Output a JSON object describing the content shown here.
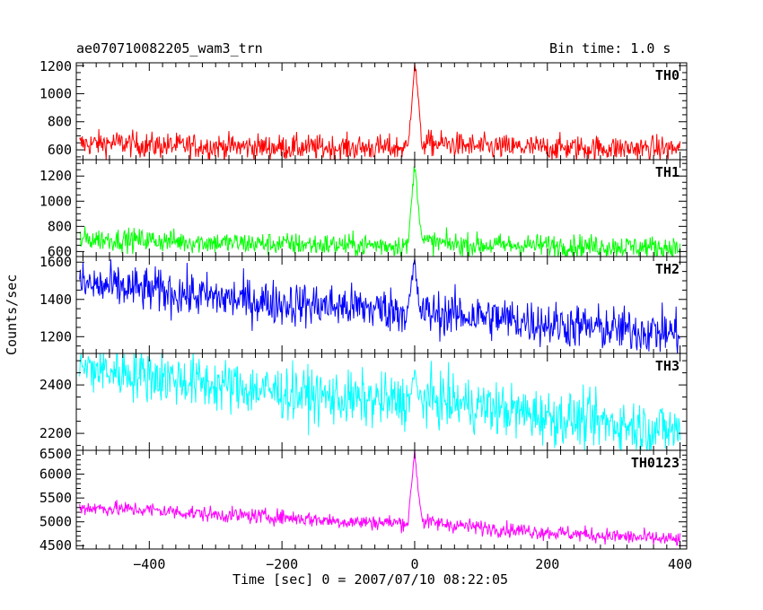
{
  "header": {
    "title": "ae070710082205_wam3_trn",
    "bin_time": "Bin time: 1.0 s"
  },
  "axes": {
    "xlabel": "Time [sec] 0 = 2007/07/10 08:22:05",
    "ylabel": "Counts/sec"
  },
  "chart_data": {
    "type": "line",
    "xlim": [
      -510,
      410
    ],
    "x_ticks": [
      -400,
      -200,
      0,
      200,
      400
    ],
    "x_minor_step": 20,
    "grid": false,
    "series": [
      {
        "name": "TH0",
        "color": "#ff0000",
        "ylim": [
          530,
          1220
        ],
        "y_ticks": [
          600,
          800,
          1000,
          1200
        ],
        "y_minor_step": 50,
        "points": [
          [
            -505,
            640
          ],
          [
            -450,
            650
          ],
          [
            -400,
            632
          ],
          [
            -300,
            625
          ],
          [
            -200,
            618
          ],
          [
            -100,
            615
          ],
          [
            -10,
            615
          ],
          [
            0,
            1220
          ],
          [
            5,
            1000
          ],
          [
            10,
            650
          ],
          [
            50,
            640
          ],
          [
            100,
            620
          ],
          [
            200,
            615
          ],
          [
            300,
            612
          ],
          [
            400,
            608
          ]
        ],
        "noise": 45
      },
      {
        "name": "TH1",
        "color": "#00ff00",
        "ylim": [
          560,
          1330
        ],
        "y_ticks": [
          600,
          800,
          1000,
          1200
        ],
        "y_minor_step": 50,
        "points": [
          [
            -505,
            700
          ],
          [
            -400,
            690
          ],
          [
            -300,
            670
          ],
          [
            -200,
            660
          ],
          [
            -100,
            650
          ],
          [
            -10,
            650
          ],
          [
            0,
            1300
          ],
          [
            5,
            1000
          ],
          [
            12,
            680
          ],
          [
            50,
            660
          ],
          [
            100,
            650
          ],
          [
            200,
            650
          ],
          [
            300,
            640
          ],
          [
            400,
            630
          ]
        ],
        "noise": 45
      },
      {
        "name": "TH2",
        "color": "#0000ff",
        "ylim": [
          1110,
          1630
        ],
        "y_ticks": [
          1200,
          1400,
          1600
        ],
        "y_minor_step": 50,
        "points": [
          [
            -505,
            1480
          ],
          [
            -400,
            1450
          ],
          [
            -300,
            1410
          ],
          [
            -200,
            1380
          ],
          [
            -100,
            1360
          ],
          [
            -10,
            1340
          ],
          [
            0,
            1600
          ],
          [
            5,
            1400
          ],
          [
            10,
            1330
          ],
          [
            100,
            1310
          ],
          [
            200,
            1270
          ],
          [
            300,
            1240
          ],
          [
            400,
            1220
          ]
        ],
        "noise": 60
      },
      {
        "name": "TH3",
        "color": "#00ffff",
        "ylim": [
          2130,
          2530
        ],
        "y_ticks": [
          2200,
          2400
        ],
        "y_minor_step": 50,
        "points": [
          [
            -505,
            2470
          ],
          [
            -400,
            2440
          ],
          [
            -300,
            2400
          ],
          [
            -200,
            2370
          ],
          [
            -100,
            2340
          ],
          [
            -10,
            2330
          ],
          [
            0,
            2440
          ],
          [
            5,
            2350
          ],
          [
            100,
            2310
          ],
          [
            200,
            2270
          ],
          [
            300,
            2240
          ],
          [
            400,
            2210
          ]
        ],
        "noise": 55
      },
      {
        "name": "TH0123",
        "color": "#ff00ff",
        "ylim": [
          4430,
          6500
        ],
        "y_ticks": [
          4500,
          5000,
          5500,
          6000,
          6500
        ],
        "y_minor_step": 100,
        "points": [
          [
            -505,
            5300
          ],
          [
            -400,
            5250
          ],
          [
            -300,
            5150
          ],
          [
            -200,
            5100
          ],
          [
            -100,
            5000
          ],
          [
            -10,
            4980
          ],
          [
            0,
            6500
          ],
          [
            5,
            5700
          ],
          [
            12,
            5000
          ],
          [
            100,
            4880
          ],
          [
            200,
            4780
          ],
          [
            300,
            4700
          ],
          [
            400,
            4620
          ]
        ],
        "noise": 80
      }
    ]
  }
}
